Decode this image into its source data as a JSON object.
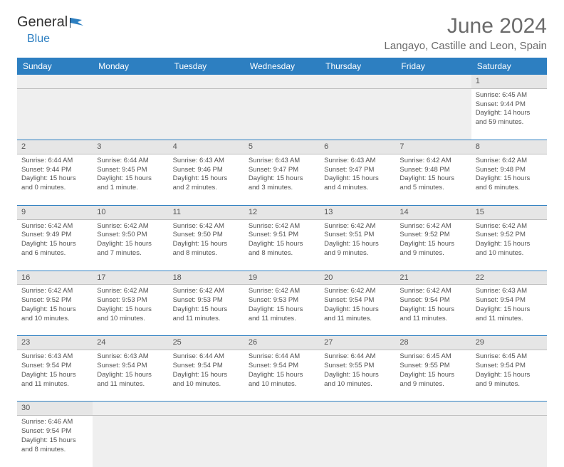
{
  "brand": {
    "part1": "General",
    "part2": "Blue"
  },
  "title": "June 2024",
  "location": "Langayo, Castille and Leon, Spain",
  "colors": {
    "headerBg": "#2d7fc1",
    "headerText": "#ffffff",
    "cellBorder": "#2d7fc1",
    "dayNumBg": "#e6e6e6",
    "textColor": "#525252"
  },
  "dayHeaders": [
    "Sunday",
    "Monday",
    "Tuesday",
    "Wednesday",
    "Thursday",
    "Friday",
    "Saturday"
  ],
  "weeks": [
    [
      null,
      null,
      null,
      null,
      null,
      null,
      {
        "n": "1",
        "sr": "Sunrise: 6:45 AM",
        "ss": "Sunset: 9:44 PM",
        "dl": "Daylight: 14 hours and 59 minutes."
      }
    ],
    [
      {
        "n": "2",
        "sr": "Sunrise: 6:44 AM",
        "ss": "Sunset: 9:44 PM",
        "dl": "Daylight: 15 hours and 0 minutes."
      },
      {
        "n": "3",
        "sr": "Sunrise: 6:44 AM",
        "ss": "Sunset: 9:45 PM",
        "dl": "Daylight: 15 hours and 1 minute."
      },
      {
        "n": "4",
        "sr": "Sunrise: 6:43 AM",
        "ss": "Sunset: 9:46 PM",
        "dl": "Daylight: 15 hours and 2 minutes."
      },
      {
        "n": "5",
        "sr": "Sunrise: 6:43 AM",
        "ss": "Sunset: 9:47 PM",
        "dl": "Daylight: 15 hours and 3 minutes."
      },
      {
        "n": "6",
        "sr": "Sunrise: 6:43 AM",
        "ss": "Sunset: 9:47 PM",
        "dl": "Daylight: 15 hours and 4 minutes."
      },
      {
        "n": "7",
        "sr": "Sunrise: 6:42 AM",
        "ss": "Sunset: 9:48 PM",
        "dl": "Daylight: 15 hours and 5 minutes."
      },
      {
        "n": "8",
        "sr": "Sunrise: 6:42 AM",
        "ss": "Sunset: 9:48 PM",
        "dl": "Daylight: 15 hours and 6 minutes."
      }
    ],
    [
      {
        "n": "9",
        "sr": "Sunrise: 6:42 AM",
        "ss": "Sunset: 9:49 PM",
        "dl": "Daylight: 15 hours and 6 minutes."
      },
      {
        "n": "10",
        "sr": "Sunrise: 6:42 AM",
        "ss": "Sunset: 9:50 PM",
        "dl": "Daylight: 15 hours and 7 minutes."
      },
      {
        "n": "11",
        "sr": "Sunrise: 6:42 AM",
        "ss": "Sunset: 9:50 PM",
        "dl": "Daylight: 15 hours and 8 minutes."
      },
      {
        "n": "12",
        "sr": "Sunrise: 6:42 AM",
        "ss": "Sunset: 9:51 PM",
        "dl": "Daylight: 15 hours and 8 minutes."
      },
      {
        "n": "13",
        "sr": "Sunrise: 6:42 AM",
        "ss": "Sunset: 9:51 PM",
        "dl": "Daylight: 15 hours and 9 minutes."
      },
      {
        "n": "14",
        "sr": "Sunrise: 6:42 AM",
        "ss": "Sunset: 9:52 PM",
        "dl": "Daylight: 15 hours and 9 minutes."
      },
      {
        "n": "15",
        "sr": "Sunrise: 6:42 AM",
        "ss": "Sunset: 9:52 PM",
        "dl": "Daylight: 15 hours and 10 minutes."
      }
    ],
    [
      {
        "n": "16",
        "sr": "Sunrise: 6:42 AM",
        "ss": "Sunset: 9:52 PM",
        "dl": "Daylight: 15 hours and 10 minutes."
      },
      {
        "n": "17",
        "sr": "Sunrise: 6:42 AM",
        "ss": "Sunset: 9:53 PM",
        "dl": "Daylight: 15 hours and 10 minutes."
      },
      {
        "n": "18",
        "sr": "Sunrise: 6:42 AM",
        "ss": "Sunset: 9:53 PM",
        "dl": "Daylight: 15 hours and 11 minutes."
      },
      {
        "n": "19",
        "sr": "Sunrise: 6:42 AM",
        "ss": "Sunset: 9:53 PM",
        "dl": "Daylight: 15 hours and 11 minutes."
      },
      {
        "n": "20",
        "sr": "Sunrise: 6:42 AM",
        "ss": "Sunset: 9:54 PM",
        "dl": "Daylight: 15 hours and 11 minutes."
      },
      {
        "n": "21",
        "sr": "Sunrise: 6:42 AM",
        "ss": "Sunset: 9:54 PM",
        "dl": "Daylight: 15 hours and 11 minutes."
      },
      {
        "n": "22",
        "sr": "Sunrise: 6:43 AM",
        "ss": "Sunset: 9:54 PM",
        "dl": "Daylight: 15 hours and 11 minutes."
      }
    ],
    [
      {
        "n": "23",
        "sr": "Sunrise: 6:43 AM",
        "ss": "Sunset: 9:54 PM",
        "dl": "Daylight: 15 hours and 11 minutes."
      },
      {
        "n": "24",
        "sr": "Sunrise: 6:43 AM",
        "ss": "Sunset: 9:54 PM",
        "dl": "Daylight: 15 hours and 11 minutes."
      },
      {
        "n": "25",
        "sr": "Sunrise: 6:44 AM",
        "ss": "Sunset: 9:54 PM",
        "dl": "Daylight: 15 hours and 10 minutes."
      },
      {
        "n": "26",
        "sr": "Sunrise: 6:44 AM",
        "ss": "Sunset: 9:54 PM",
        "dl": "Daylight: 15 hours and 10 minutes."
      },
      {
        "n": "27",
        "sr": "Sunrise: 6:44 AM",
        "ss": "Sunset: 9:55 PM",
        "dl": "Daylight: 15 hours and 10 minutes."
      },
      {
        "n": "28",
        "sr": "Sunrise: 6:45 AM",
        "ss": "Sunset: 9:55 PM",
        "dl": "Daylight: 15 hours and 9 minutes."
      },
      {
        "n": "29",
        "sr": "Sunrise: 6:45 AM",
        "ss": "Sunset: 9:54 PM",
        "dl": "Daylight: 15 hours and 9 minutes."
      }
    ],
    [
      {
        "n": "30",
        "sr": "Sunrise: 6:46 AM",
        "ss": "Sunset: 9:54 PM",
        "dl": "Daylight: 15 hours and 8 minutes."
      },
      null,
      null,
      null,
      null,
      null,
      null
    ]
  ]
}
